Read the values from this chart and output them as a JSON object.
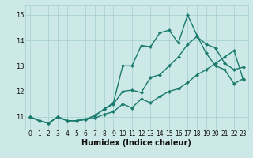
{
  "xlabel": "Humidex (Indice chaleur)",
  "ylabel": "",
  "xlim": [
    -0.5,
    23.5
  ],
  "ylim": [
    10.5,
    15.4
  ],
  "background_color": "#cce9e7",
  "grid_color": "#aad3d0",
  "line_color": "#1a7a6e",
  "x": [
    0,
    1,
    2,
    3,
    4,
    5,
    6,
    7,
    8,
    9,
    10,
    11,
    12,
    13,
    14,
    15,
    16,
    17,
    18,
    19,
    20,
    21,
    22,
    23
  ],
  "y_line1": [
    11.0,
    10.85,
    10.75,
    11.0,
    10.85,
    10.85,
    10.9,
    10.95,
    11.1,
    11.2,
    11.5,
    11.35,
    11.7,
    11.55,
    11.8,
    12.0,
    12.1,
    12.35,
    12.65,
    12.85,
    13.1,
    13.35,
    13.6,
    12.45
  ],
  "y_line2": [
    11.0,
    10.85,
    10.75,
    11.0,
    10.85,
    10.85,
    10.9,
    11.05,
    11.3,
    11.5,
    12.0,
    12.05,
    11.95,
    12.55,
    12.65,
    13.0,
    13.35,
    13.85,
    14.15,
    13.85,
    13.7,
    13.1,
    12.85,
    12.95
  ],
  "y_line3": [
    11.0,
    10.85,
    10.75,
    11.0,
    10.85,
    10.85,
    10.9,
    11.05,
    11.3,
    11.55,
    13.0,
    13.0,
    13.8,
    13.75,
    14.3,
    14.4,
    13.9,
    15.0,
    14.2,
    13.5,
    13.0,
    12.85,
    12.3,
    12.5
  ],
  "xticks": [
    0,
    1,
    2,
    3,
    4,
    5,
    6,
    7,
    8,
    9,
    10,
    11,
    12,
    13,
    14,
    15,
    16,
    17,
    18,
    19,
    20,
    21,
    22,
    23
  ],
  "yticks": [
    11,
    12,
    13,
    14,
    15
  ],
  "marker": "D",
  "markersize": 2.2,
  "linewidth": 1.0,
  "tick_fontsize": 5.5,
  "xlabel_fontsize": 7.0
}
